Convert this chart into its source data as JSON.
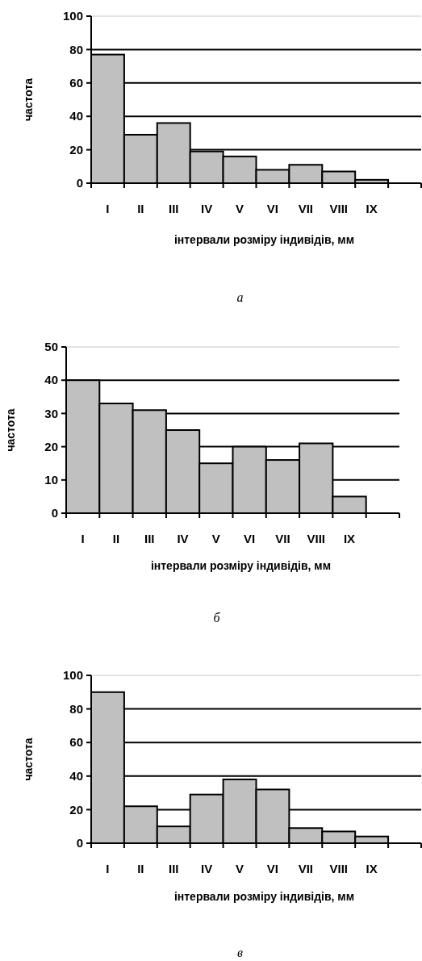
{
  "chart_data": [
    {
      "type": "bar",
      "categories": [
        "I",
        "II",
        "III",
        "IV",
        "V",
        "VI",
        "VII",
        "VIII",
        "IX",
        null
      ],
      "values": [
        77,
        29,
        36,
        19,
        16,
        8,
        11,
        7,
        2,
        null
      ],
      "color": "#c0c0c0",
      "ylim": [
        0,
        100
      ],
      "yticks": [
        0,
        20,
        40,
        60,
        80,
        100
      ],
      "grid": "y",
      "ylabel": "частота",
      "xlabel": "інтервали розміру індивідів, мм",
      "annotations": [
        "а"
      ]
    },
    {
      "type": "bar",
      "categories": [
        "I",
        "II",
        "III",
        "IV",
        "V",
        "VI",
        "VII",
        "VIII",
        "IX",
        null
      ],
      "values": [
        40,
        33,
        31,
        25,
        15,
        20,
        16,
        21,
        5,
        null
      ],
      "color": "#c0c0c0",
      "ylim": [
        0,
        50
      ],
      "yticks": [
        0,
        10,
        20,
        30,
        40,
        50
      ],
      "grid": "y",
      "ylabel": "частота",
      "xlabel": "інтервали розміру індивідів, мм",
      "annotations": [
        "б"
      ]
    },
    {
      "type": "bar",
      "categories": [
        "I",
        "II",
        "III",
        "IV",
        "V",
        "VI",
        "VII",
        "VIII",
        "IX",
        null
      ],
      "values": [
        90,
        22,
        10,
        29,
        38,
        32,
        9,
        7,
        4,
        null
      ],
      "color": "#c0c0c0",
      "ylim": [
        0,
        100
      ],
      "yticks": [
        0,
        20,
        40,
        60,
        80,
        100
      ],
      "grid": "y",
      "ylabel": "частота",
      "xlabel": "інтервали розміру індивідів, мм",
      "annotations": [
        "в"
      ]
    }
  ]
}
